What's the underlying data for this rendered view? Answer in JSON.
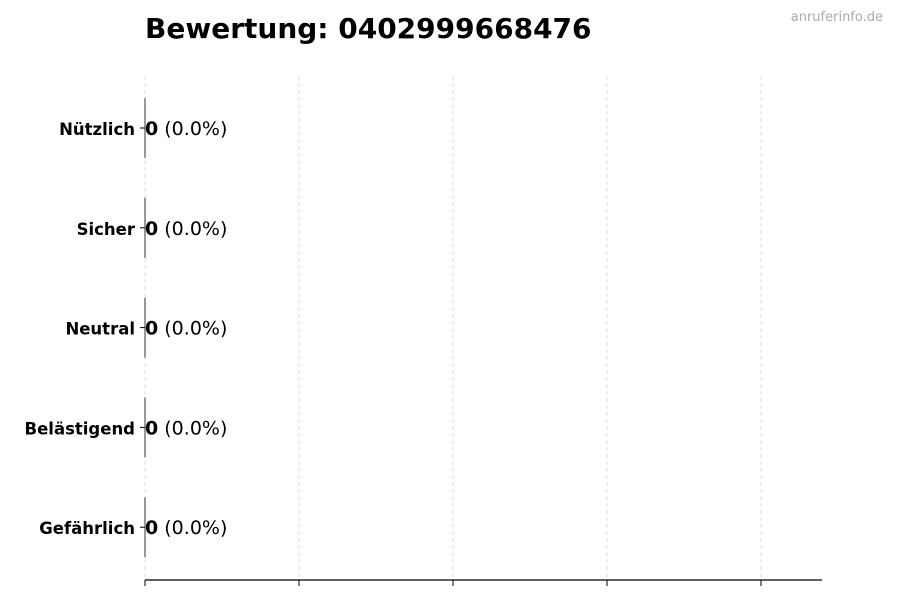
{
  "header": {
    "title": "Bewertung: 0402999668476",
    "watermark": "anruferinfo.de"
  },
  "chart_data": {
    "type": "bar",
    "orientation": "horizontal",
    "title": "Bewertung: 0402999668476",
    "categories": [
      "Nützlich",
      "Sicher",
      "Neutral",
      "Belästigend",
      "Gefährlich"
    ],
    "values": [
      0,
      0,
      0,
      0,
      0
    ],
    "value_labels": [
      "0",
      "0",
      "0",
      "0",
      "0"
    ],
    "percent_labels": [
      "(0.0%)",
      "(0.0%)",
      "(0.0%)",
      "(0.0%)",
      "(0.0%)"
    ],
    "xlabel": "",
    "ylabel": "",
    "xlim": [
      0,
      4.4
    ],
    "x_tick_labels_shown": false,
    "grid": "vertical dashed",
    "colors": {
      "grid": "#dddddd",
      "bar_edge": "#333333"
    }
  }
}
